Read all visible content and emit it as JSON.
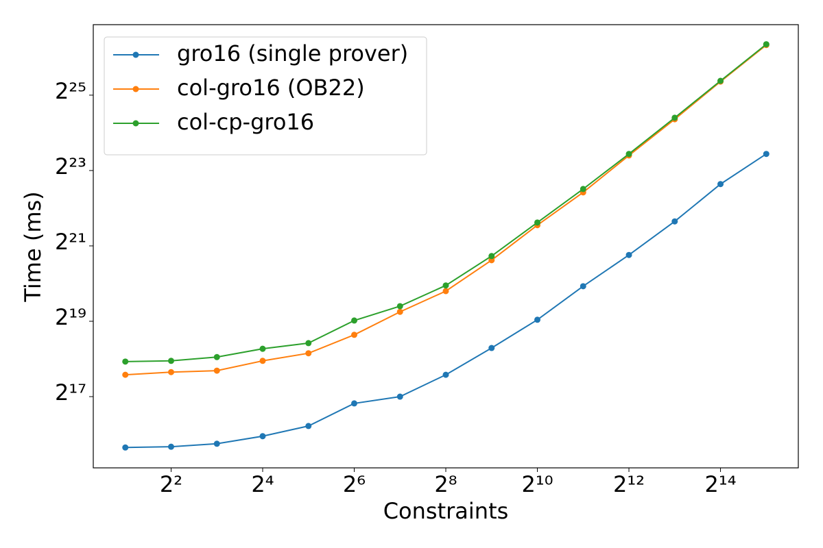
{
  "chart_data": {
    "type": "line",
    "xlabel": "Constraints",
    "ylabel": "Time (ms)",
    "x": [
      2,
      4,
      8,
      16,
      32,
      64,
      128,
      256,
      512,
      1024,
      2048,
      4096,
      8192,
      16384,
      32768
    ],
    "series": [
      {
        "name": "gro16 (single prover)",
        "color": "#1f77b4",
        "values": [
          51420,
          52140,
          55110,
          63310,
          76350,
          115700,
          131072,
          195900,
          320600,
          539000,
          998800,
          1775000,
          3291000,
          6536000,
          11380000
        ]
      },
      {
        "name": "col-gro16 (OB22)",
        "color": "#ff7f0e",
        "values": [
          195900,
          205700,
          211400,
          253200,
          291000,
          408500,
          623500,
          912800,
          1612000,
          3070000,
          5612000,
          11070000,
          21540000,
          43080000,
          84360000
        ]
      },
      {
        "name": "col-cp-gro16",
        "color": "#2ca02c",
        "values": [
          249700,
          253200,
          271300,
          316100,
          350700,
          531600,
          692100,
          1013000,
          1740000,
          3223000,
          5973000,
          11380000,
          22150000,
          43660000,
          85560000
        ]
      }
    ],
    "xscale": "log",
    "yscale": "log",
    "log_base": 2,
    "xlim": [
      1.231,
      53218
    ],
    "ylim": [
      35360,
      122700000
    ],
    "xticks": [
      {
        "value": 4,
        "label": "2²"
      },
      {
        "value": 16,
        "label": "2⁴"
      },
      {
        "value": 64,
        "label": "2⁶"
      },
      {
        "value": 256,
        "label": "2⁸"
      },
      {
        "value": 1024,
        "label": "2¹⁰"
      },
      {
        "value": 4096,
        "label": "2¹²"
      },
      {
        "value": 16384,
        "label": "2¹⁴"
      }
    ],
    "yticks": [
      {
        "value": 131072,
        "label": "2¹⁷"
      },
      {
        "value": 524288,
        "label": "2¹⁹"
      },
      {
        "value": 2097152,
        "label": "2²¹"
      },
      {
        "value": 8388608,
        "label": "2²³"
      },
      {
        "value": 33554432,
        "label": "2²⁵"
      }
    ],
    "grid": false,
    "legend": "upper left"
  }
}
